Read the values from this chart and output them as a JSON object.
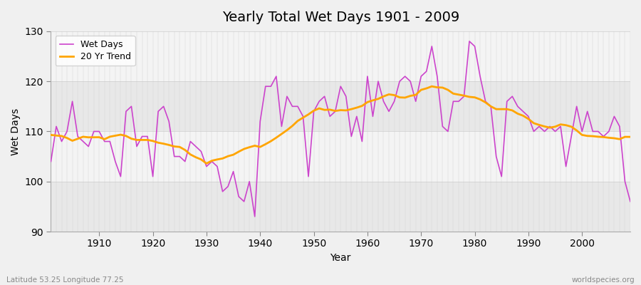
{
  "title": "Yearly Total Wet Days 1901 - 2009",
  "xlabel": "Year",
  "ylabel": "Wet Days",
  "xlim": [
    1901,
    2009
  ],
  "ylim": [
    90,
    130
  ],
  "yticks": [
    90,
    100,
    110,
    120,
    130
  ],
  "xticks": [
    1910,
    1920,
    1930,
    1940,
    1950,
    1960,
    1970,
    1980,
    1990,
    2000
  ],
  "bg_color": "#f0f0f0",
  "plot_bg_color": "#f0f0f0",
  "wet_days_color": "#cc44cc",
  "trend_color": "#FFA500",
  "subtitle_left": "Latitude 53.25 Longitude 77.25",
  "subtitle_right": "worldspecies.org",
  "legend_labels": [
    "Wet Days",
    "20 Yr Trend"
  ],
  "years": [
    1901,
    1902,
    1903,
    1904,
    1905,
    1906,
    1907,
    1908,
    1909,
    1910,
    1911,
    1912,
    1913,
    1914,
    1915,
    1916,
    1917,
    1918,
    1919,
    1920,
    1921,
    1922,
    1923,
    1924,
    1925,
    1926,
    1927,
    1928,
    1929,
    1930,
    1931,
    1932,
    1933,
    1934,
    1935,
    1936,
    1937,
    1938,
    1939,
    1940,
    1941,
    1942,
    1943,
    1944,
    1945,
    1946,
    1947,
    1948,
    1949,
    1950,
    1951,
    1952,
    1953,
    1954,
    1955,
    1956,
    1957,
    1958,
    1959,
    1960,
    1961,
    1962,
    1963,
    1964,
    1965,
    1966,
    1967,
    1968,
    1969,
    1970,
    1971,
    1972,
    1973,
    1974,
    1975,
    1976,
    1977,
    1978,
    1979,
    1980,
    1981,
    1982,
    1983,
    1984,
    1985,
    1986,
    1987,
    1988,
    1989,
    1990,
    1991,
    1992,
    1993,
    1994,
    1995,
    1996,
    1997,
    1998,
    1999,
    2000,
    2001,
    2002,
    2003,
    2004,
    2005,
    2006,
    2007,
    2008,
    2009
  ],
  "wet_days": [
    104,
    111,
    108,
    110,
    116,
    109,
    108,
    107,
    110,
    110,
    108,
    108,
    104,
    101,
    114,
    115,
    107,
    109,
    109,
    101,
    114,
    115,
    112,
    105,
    105,
    104,
    108,
    107,
    106,
    103,
    104,
    103,
    98,
    99,
    102,
    97,
    96,
    100,
    93,
    112,
    119,
    119,
    121,
    111,
    117,
    115,
    115,
    113,
    101,
    114,
    116,
    117,
    113,
    114,
    119,
    117,
    109,
    113,
    108,
    121,
    113,
    120,
    116,
    114,
    116,
    120,
    121,
    120,
    116,
    121,
    122,
    127,
    121,
    111,
    110,
    116,
    116,
    117,
    128,
    127,
    121,
    116,
    115,
    105,
    101,
    116,
    117,
    115,
    114,
    113,
    110,
    111,
    110,
    111,
    110,
    111,
    103,
    109,
    115,
    110,
    114,
    110,
    110,
    109,
    110,
    113,
    111,
    100,
    96
  ]
}
